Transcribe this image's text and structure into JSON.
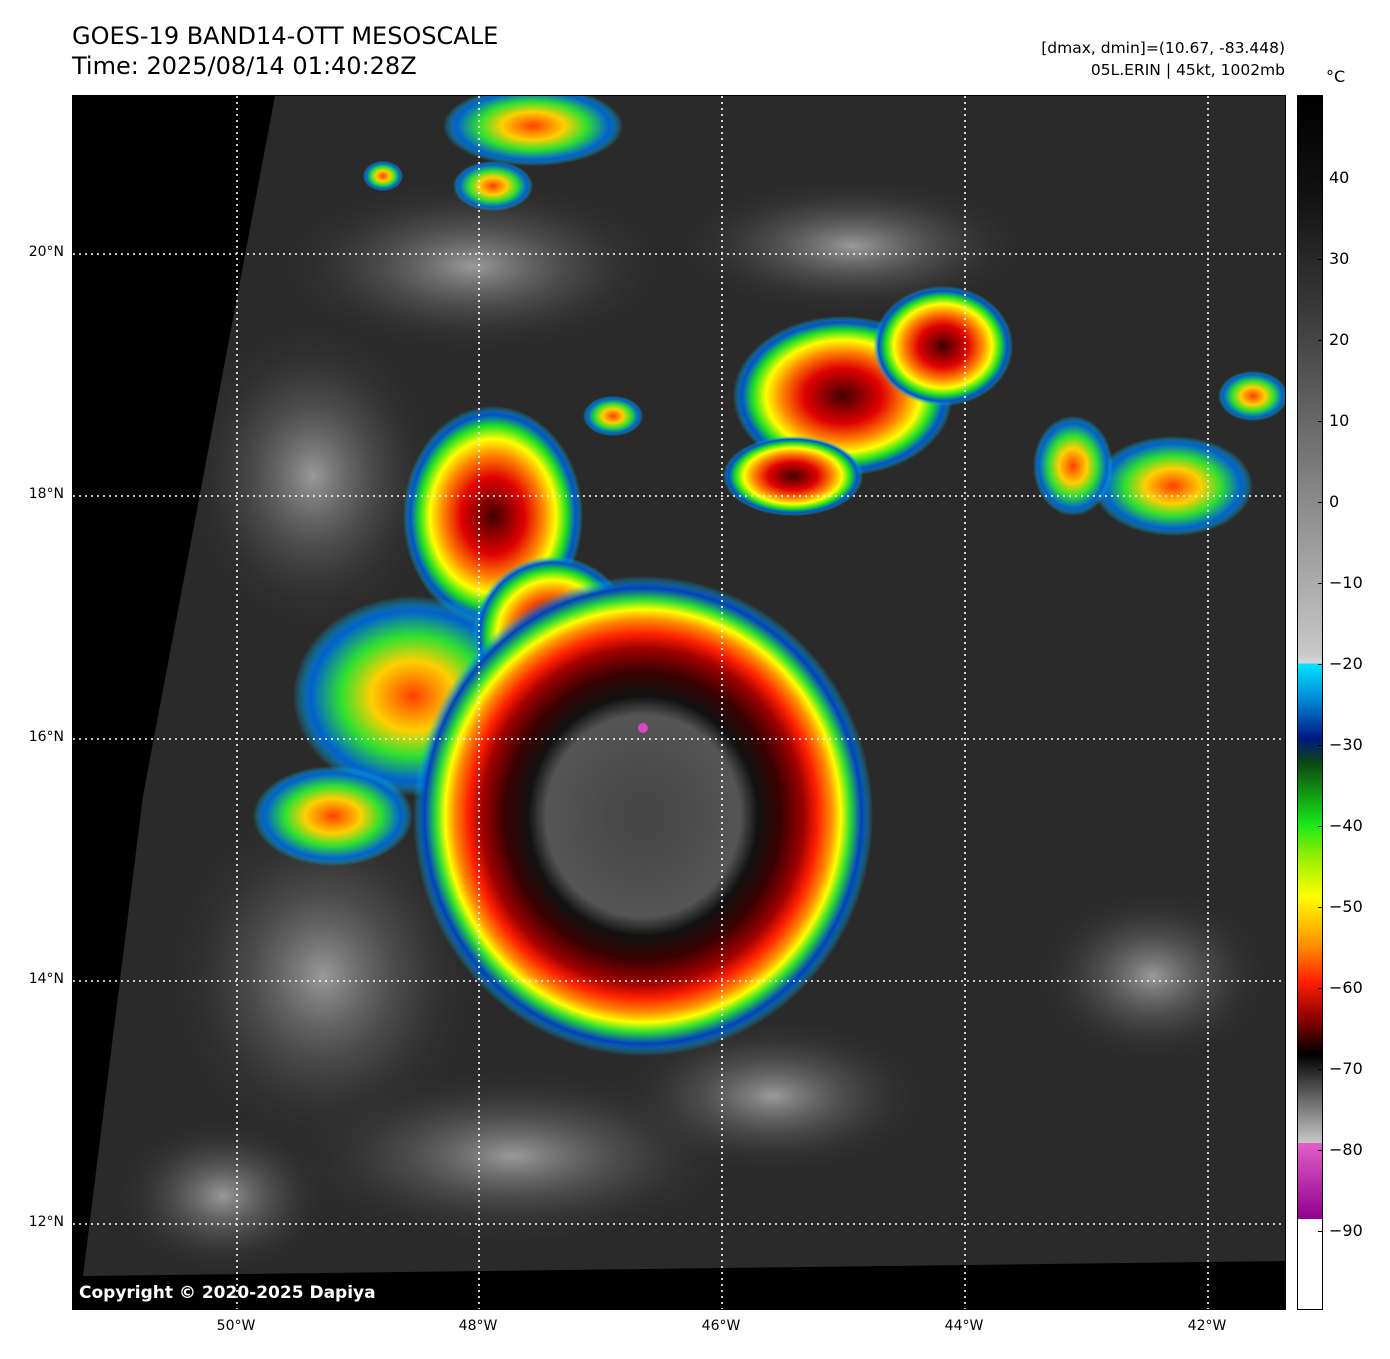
{
  "title": {
    "line1": "GOES-19 BAND14-OTT MESOSCALE",
    "line2": "Time: 2025/08/14 01:40:28Z"
  },
  "meta": {
    "dmax_dmin": "[dmax, dmin]=(10.67, -83.448)",
    "storm": "05L.ERIN | 45kt, 1002mb"
  },
  "map": {
    "lat_labels": [
      "20°N",
      "18°N",
      "16°N",
      "14°N",
      "12°N"
    ],
    "lon_labels": [
      "50°W",
      "48°W",
      "46°W",
      "44°W",
      "42°W"
    ],
    "copyright": "Copyright © 2020-2025 Dapiya"
  },
  "colorbar": {
    "unit": "°C",
    "ticks": [
      "40",
      "30",
      "20",
      "10",
      "0",
      "−10",
      "−20",
      "−30",
      "−40",
      "−50",
      "−60",
      "−70",
      "−80",
      "−90"
    ]
  },
  "colors": {
    "background": "#2a2a2a",
    "space": "#000000",
    "cyan": "#00e5ff",
    "blue": "#00208f",
    "green": "#19e619",
    "yellow": "#ffff00",
    "orange": "#ff8000",
    "red": "#e60000",
    "darkred": "#500000",
    "magenta": "#d946c0"
  }
}
